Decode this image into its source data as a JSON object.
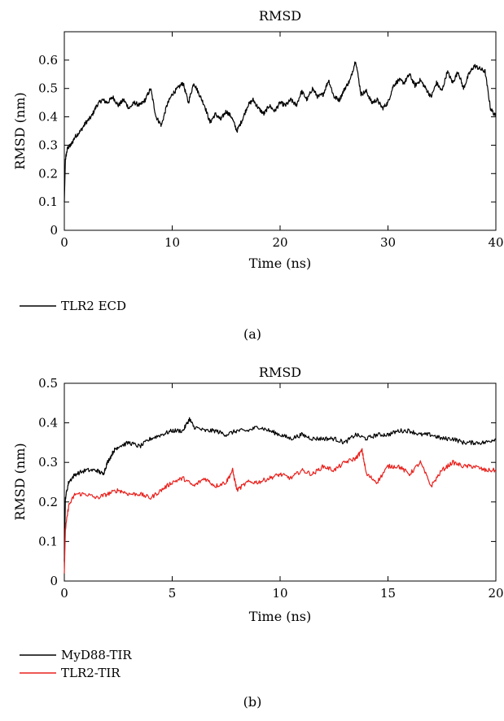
{
  "chart_data": [
    {
      "type": "line",
      "title": "RMSD",
      "xlabel": "Time (ns)",
      "ylabel": "RMSD (nm)",
      "xlim": [
        0,
        40
      ],
      "ylim": [
        0,
        0.7
      ],
      "xticks": [
        0,
        10,
        20,
        30,
        40
      ],
      "yticks": [
        0,
        0.1,
        0.2,
        0.3,
        0.4,
        0.5,
        0.6
      ],
      "grid": false,
      "legend_position": "bottom-left",
      "panel_label": "(a)",
      "series": [
        {
          "name": "TLR2 ECD",
          "color": "#000000",
          "x": [
            0,
            0.1,
            0.3,
            0.6,
            1,
            1.5,
            2,
            2.5,
            3,
            3.5,
            4,
            4.5,
            5,
            5.5,
            6,
            6.5,
            7,
            7.5,
            8,
            8.5,
            9,
            9.5,
            10,
            10.5,
            11,
            11.5,
            12,
            12.5,
            13,
            13.5,
            14,
            14.5,
            15,
            15.5,
            16,
            16.5,
            17,
            17.5,
            18,
            18.5,
            19,
            19.5,
            20,
            20.5,
            21,
            21.5,
            22,
            22.5,
            23,
            23.5,
            24,
            24.5,
            25,
            25.5,
            26,
            26.5,
            27,
            27.5,
            28,
            28.5,
            29,
            29.5,
            30,
            30.5,
            31,
            31.5,
            32,
            32.5,
            33,
            33.5,
            34,
            34.5,
            35,
            35.5,
            36,
            36.5,
            37,
            37.5,
            38,
            38.5,
            39,
            39.5,
            40
          ],
          "y": [
            0.1,
            0.25,
            0.29,
            0.3,
            0.33,
            0.35,
            0.38,
            0.4,
            0.44,
            0.46,
            0.45,
            0.47,
            0.44,
            0.46,
            0.43,
            0.45,
            0.44,
            0.46,
            0.5,
            0.4,
            0.37,
            0.44,
            0.48,
            0.5,
            0.52,
            0.45,
            0.52,
            0.48,
            0.44,
            0.38,
            0.41,
            0.39,
            0.42,
            0.4,
            0.35,
            0.39,
            0.44,
            0.46,
            0.43,
            0.41,
            0.44,
            0.42,
            0.45,
            0.44,
            0.46,
            0.44,
            0.49,
            0.46,
            0.5,
            0.47,
            0.48,
            0.53,
            0.47,
            0.46,
            0.5,
            0.53,
            0.6,
            0.48,
            0.49,
            0.45,
            0.46,
            0.43,
            0.45,
            0.51,
            0.53,
            0.52,
            0.55,
            0.51,
            0.53,
            0.5,
            0.47,
            0.52,
            0.49,
            0.56,
            0.52,
            0.56,
            0.5,
            0.55,
            0.58,
            0.57,
            0.56,
            0.43,
            0.4
          ]
        }
      ]
    },
    {
      "type": "line",
      "title": "RMSD",
      "xlabel": "Time (ns)",
      "ylabel": "RMSD (nm)",
      "xlim": [
        0,
        20
      ],
      "ylim": [
        0,
        0.5
      ],
      "xticks": [
        0,
        5,
        10,
        15,
        20
      ],
      "yticks": [
        0,
        0.1,
        0.2,
        0.3,
        0.4,
        0.5
      ],
      "grid": false,
      "legend_position": "bottom-left",
      "panel_label": "(b)",
      "series": [
        {
          "name": "MyD88-TIR",
          "color": "#000000",
          "x": [
            0,
            0.05,
            0.2,
            0.5,
            1,
            1.5,
            1.8,
            2,
            2.3,
            2.5,
            3,
            3.5,
            4,
            4.5,
            5,
            5.5,
            5.8,
            6,
            6.5,
            7,
            7.5,
            8,
            8.5,
            9,
            9.5,
            10,
            10.5,
            11,
            11.5,
            12,
            12.5,
            13,
            13.5,
            14,
            14.5,
            15,
            15.5,
            16,
            16.5,
            17,
            17.5,
            18,
            18.5,
            19,
            19.5,
            20
          ],
          "y": [
            0.05,
            0.21,
            0.25,
            0.27,
            0.28,
            0.28,
            0.27,
            0.3,
            0.33,
            0.34,
            0.35,
            0.34,
            0.36,
            0.37,
            0.38,
            0.38,
            0.41,
            0.39,
            0.38,
            0.38,
            0.37,
            0.38,
            0.38,
            0.39,
            0.38,
            0.37,
            0.36,
            0.37,
            0.36,
            0.36,
            0.36,
            0.35,
            0.37,
            0.36,
            0.37,
            0.37,
            0.38,
            0.38,
            0.37,
            0.37,
            0.36,
            0.36,
            0.35,
            0.35,
            0.35,
            0.36
          ]
        },
        {
          "name": "TLR2-TIR",
          "color": "#e8201c",
          "x": [
            0,
            0.05,
            0.2,
            0.5,
            1,
            1.5,
            2,
            2.5,
            3,
            3.5,
            4,
            4.5,
            5,
            5.5,
            6,
            6.5,
            7,
            7.5,
            7.8,
            8,
            8.5,
            9,
            9.5,
            10,
            10.5,
            11,
            11.5,
            12,
            12.5,
            13,
            13.5,
            13.8,
            14,
            14.5,
            15,
            15.5,
            16,
            16.5,
            17,
            17.5,
            18,
            18.5,
            19,
            19.5,
            20
          ],
          "y": [
            0.02,
            0.13,
            0.19,
            0.22,
            0.22,
            0.21,
            0.22,
            0.23,
            0.22,
            0.22,
            0.21,
            0.23,
            0.25,
            0.26,
            0.24,
            0.26,
            0.24,
            0.25,
            0.28,
            0.23,
            0.25,
            0.25,
            0.26,
            0.27,
            0.26,
            0.28,
            0.27,
            0.29,
            0.28,
            0.3,
            0.31,
            0.33,
            0.27,
            0.25,
            0.29,
            0.29,
            0.27,
            0.3,
            0.24,
            0.28,
            0.3,
            0.29,
            0.29,
            0.28,
            0.28
          ]
        }
      ]
    }
  ]
}
